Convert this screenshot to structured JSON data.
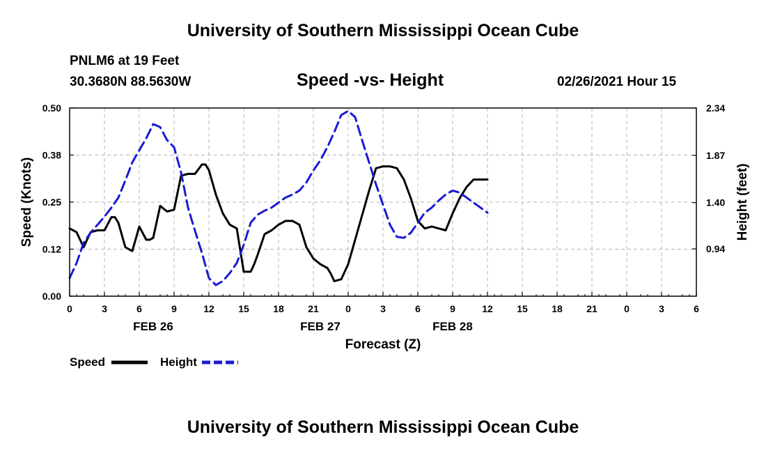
{
  "header": {
    "title": "University of Southern Mississippi Ocean Cube",
    "station": "PNLM6 at 19 Feet",
    "coordinates": "30.3680N 88.5630W",
    "timestamp": "02/26/2021 Hour 15"
  },
  "footer": {
    "title": "University of Southern Mississippi Ocean Cube"
  },
  "colors": {
    "speed": "#000000",
    "height": "#1a1ad4",
    "grid": "#b4b4b4"
  },
  "chart_data": {
    "type": "line",
    "title": "Speed -vs- Height",
    "xlabel": "Forecast (Z)",
    "ylabel": "Speed (Knots)",
    "y2label": "Height (feet)",
    "x_range": [
      0,
      90
    ],
    "ylim": [
      0,
      0.5
    ],
    "y2lim": [
      0.47,
      2.34
    ],
    "yticks": [
      "0.00",
      "0.12",
      "0.25",
      "0.38",
      "0.50"
    ],
    "y2ticks": [
      "0.94",
      "1.40",
      "1.87",
      "2.34"
    ],
    "xtick_labels": [
      "0",
      "3",
      "6",
      "9",
      "12",
      "15",
      "18",
      "21",
      "0",
      "3",
      "6",
      "9",
      "12",
      "15",
      "18",
      "21",
      "0",
      "3",
      "6"
    ],
    "date_labels": [
      {
        "label": "FEB 26",
        "x": 12
      },
      {
        "label": "FEB 27",
        "x": 36
      },
      {
        "label": "FEB 28",
        "x": 55
      }
    ],
    "legend": [
      "Speed",
      "Height"
    ],
    "series": [
      {
        "name": "Speed",
        "x": [
          0,
          1,
          2,
          3,
          4,
          5,
          6,
          6.5,
          7,
          8,
          9,
          10,
          11,
          11.5,
          12,
          13,
          14,
          15,
          16,
          17,
          18,
          19,
          19.5,
          20,
          21,
          22,
          23,
          24,
          25,
          26,
          26.5,
          27,
          28,
          29,
          30,
          31,
          32,
          33,
          34,
          35,
          36,
          37,
          37.5,
          38,
          39,
          40,
          41,
          42,
          43,
          44,
          45,
          46,
          47,
          48,
          49,
          50,
          51,
          52,
          53,
          54,
          55,
          56,
          57,
          58,
          59,
          60
        ],
        "values": [
          0.18,
          0.17,
          0.13,
          0.17,
          0.175,
          0.175,
          0.21,
          0.21,
          0.195,
          0.13,
          0.12,
          0.185,
          0.15,
          0.15,
          0.155,
          0.24,
          0.225,
          0.23,
          0.32,
          0.325,
          0.325,
          0.35,
          0.35,
          0.335,
          0.27,
          0.22,
          0.19,
          0.18,
          0.065,
          0.065,
          0.085,
          0.11,
          0.165,
          0.175,
          0.19,
          0.2,
          0.2,
          0.19,
          0.13,
          0.1,
          0.085,
          0.075,
          0.06,
          0.04,
          0.045,
          0.085,
          0.15,
          0.215,
          0.28,
          0.34,
          0.345,
          0.345,
          0.34,
          0.31,
          0.26,
          0.2,
          0.18,
          0.185,
          0.18,
          0.175,
          0.22,
          0.26,
          0.29,
          0.31,
          0.31,
          0.31
        ]
      },
      {
        "name": "Height",
        "x": [
          0,
          1,
          2,
          3,
          4,
          5,
          6,
          7,
          8,
          9,
          10,
          11,
          12,
          13,
          14,
          15,
          16,
          17,
          18,
          19,
          20,
          21,
          22,
          23,
          24,
          25,
          26,
          27,
          28,
          29,
          30,
          31,
          32,
          33,
          34,
          35,
          36,
          37,
          38,
          39,
          40,
          41,
          42,
          43,
          44,
          45,
          46,
          47,
          48,
          49,
          50,
          51,
          52,
          53,
          54,
          55,
          56,
          57,
          58,
          59,
          60
        ],
        "values": [
          0.65,
          0.8,
          1.0,
          1.1,
          1.18,
          1.26,
          1.35,
          1.45,
          1.62,
          1.8,
          1.92,
          2.04,
          2.18,
          2.15,
          2.02,
          1.95,
          1.7,
          1.35,
          1.12,
          0.9,
          0.65,
          0.58,
          0.62,
          0.7,
          0.8,
          0.98,
          1.2,
          1.28,
          1.32,
          1.35,
          1.4,
          1.45,
          1.48,
          1.52,
          1.6,
          1.72,
          1.82,
          1.95,
          2.1,
          2.27,
          2.31,
          2.25,
          2.02,
          1.8,
          1.58,
          1.38,
          1.18,
          1.06,
          1.05,
          1.1,
          1.2,
          1.3,
          1.35,
          1.42,
          1.48,
          1.52,
          1.5,
          1.45,
          1.4,
          1.35,
          1.3
        ]
      }
    ]
  }
}
